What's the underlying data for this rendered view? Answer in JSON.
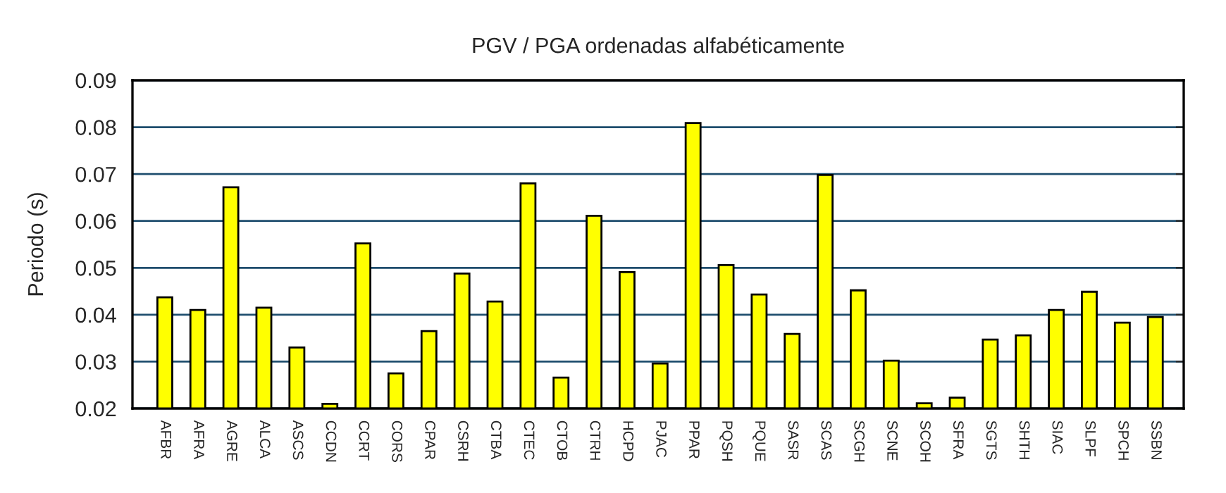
{
  "chart_data": {
    "type": "bar",
    "title": "PGV / PGA ordenadas alfabéticamente",
    "ylabel": "Periodo (s)",
    "categories": [
      "AFBR",
      "AFRA",
      "AGRE",
      "ALCA",
      "ASCS",
      "CCDN",
      "CCRT",
      "CORS",
      "CPAR",
      "CSRH",
      "CTBA",
      "CTEC",
      "CTOB",
      "CTRH",
      "HCPD",
      "PJAC",
      "PPAR",
      "PQSH",
      "PQUE",
      "SASR",
      "SCAS",
      "SCGH",
      "SCNE",
      "SCOH",
      "SFRA",
      "SGTS",
      "SHTH",
      "SIAC",
      "SLPF",
      "SPCH",
      "SSBN"
    ],
    "values": [
      0.0437,
      0.041,
      0.0672,
      0.0415,
      0.033,
      0.021,
      0.0552,
      0.0275,
      0.0365,
      0.0488,
      0.0428,
      0.068,
      0.0266,
      0.0611,
      0.0491,
      0.0296,
      0.0809,
      0.0506,
      0.0443,
      0.0359,
      0.0698,
      0.0452,
      0.0302,
      0.0211,
      0.0223,
      0.0347,
      0.0356,
      0.041,
      0.0449,
      0.0383,
      0.0395
    ],
    "color": "#ffff00",
    "ylim": [
      0.02,
      0.09
    ],
    "yticks": [
      0.02,
      0.03,
      0.04,
      0.05,
      0.06,
      0.07,
      0.08,
      0.09
    ],
    "grid": "y",
    "legend": false
  }
}
